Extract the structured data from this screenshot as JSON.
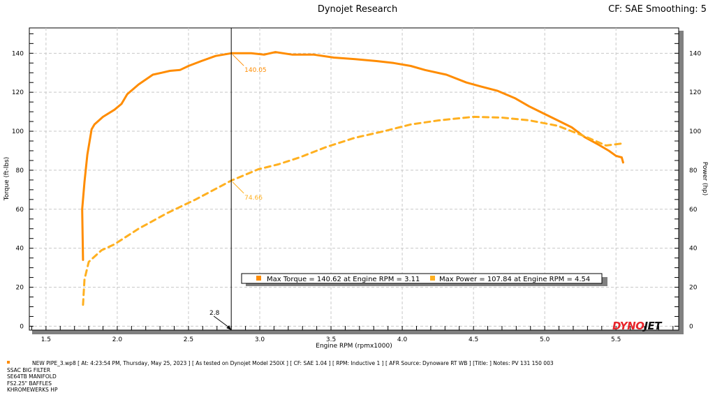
{
  "header": {
    "title": "Dynojet Research",
    "cf_label": "CF: SAE Smoothing: 5"
  },
  "logo": "DYNOJET",
  "legend": {
    "torque_text": "Max Torque = 140.62 at Engine RPM = 3.11",
    "power_text": "Max Power = 107.84 at Engine RPM = 4.54"
  },
  "footer": {
    "run_line": "NEW PIPE_3.wp8 [ At: 4:23:54 PM, Thursday, May 25, 2023 ] [ As tested on Dynojet Model 250iX ] [ CF: SAE 1.04 ] [ RPM: Inductive 1 ] [ AFR Source: Dynoware RT WB ] [Title: ]  Notes: PV 131 150 003",
    "notes": [
      "SSAC BIG FILTER",
      "SE64TB MANIFOLD",
      "FS2.25\" BAFFLES",
      "KHROMEWERKS HP"
    ]
  },
  "chart_data": {
    "type": "line",
    "title": "Dynojet Research",
    "xlabel": "Engine RPM (rpmx1000)",
    "ylabel": "Torque (ft-lbs)",
    "y2label": "Power (hp)",
    "xlim": [
      1.383,
      5.94
    ],
    "ylim": [
      -2,
      153
    ],
    "xticks": [
      "1.5",
      "2.0",
      "2.5",
      "3.0",
      "3.5",
      "4.0",
      "4.5",
      "5.0",
      "5.5"
    ],
    "yticks": [
      "0",
      "20",
      "40",
      "60",
      "80",
      "100",
      "120",
      "140"
    ],
    "grid": true,
    "cursor": {
      "x": 2.8,
      "label": "2.8",
      "torque_value": "140.05",
      "power_value": "74.66",
      "torque_y": 140.05,
      "power_y": 74.66
    },
    "colors": {
      "torque": "#ff8c00",
      "power": "#ffb020",
      "logo_red": "#e8242a"
    },
    "series": [
      {
        "name": "Torque",
        "style": "solid",
        "x": [
          1.76,
          1.754,
          1.77,
          1.79,
          1.82,
          1.84,
          1.9,
          1.98,
          2.03,
          2.07,
          2.15,
          2.25,
          2.31,
          2.37,
          2.44,
          2.5,
          2.59,
          2.69,
          2.8,
          2.94,
          3.03,
          3.11,
          3.23,
          3.38,
          3.52,
          3.67,
          3.82,
          3.94,
          4.06,
          4.16,
          4.31,
          4.45,
          4.55,
          4.67,
          4.79,
          4.89,
          4.99,
          5.09,
          5.19,
          5.28,
          5.38,
          5.45,
          5.5,
          5.54,
          5.55
        ],
        "y": [
          34,
          60,
          74,
          88,
          101,
          103.5,
          107.4,
          111,
          114,
          119,
          124,
          129,
          130,
          131,
          131.4,
          133.5,
          136,
          138.6,
          140,
          140,
          139.3,
          140.6,
          139.3,
          139.3,
          137.8,
          137,
          136,
          135,
          133.5,
          131.4,
          129,
          125,
          123,
          120.7,
          117,
          112.8,
          109.2,
          105.6,
          102,
          97,
          93,
          90,
          87.4,
          86.6,
          84
        ]
      },
      {
        "name": "Power",
        "style": "dashed",
        "x": [
          1.76,
          1.77,
          1.8,
          1.89,
          1.98,
          2.15,
          2.35,
          2.55,
          2.8,
          2.99,
          3.13,
          3.28,
          3.47,
          3.67,
          3.87,
          4.06,
          4.26,
          4.5,
          4.7,
          4.89,
          5.09,
          5.28,
          5.43,
          5.55
        ],
        "y": [
          11,
          24,
          33,
          39,
          42,
          50,
          58,
          65,
          74.66,
          80.5,
          83,
          86.6,
          92,
          96.7,
          100,
          103.5,
          105.6,
          107.4,
          107,
          105.6,
          102.8,
          97.4,
          92.7,
          93.8
        ]
      }
    ]
  }
}
